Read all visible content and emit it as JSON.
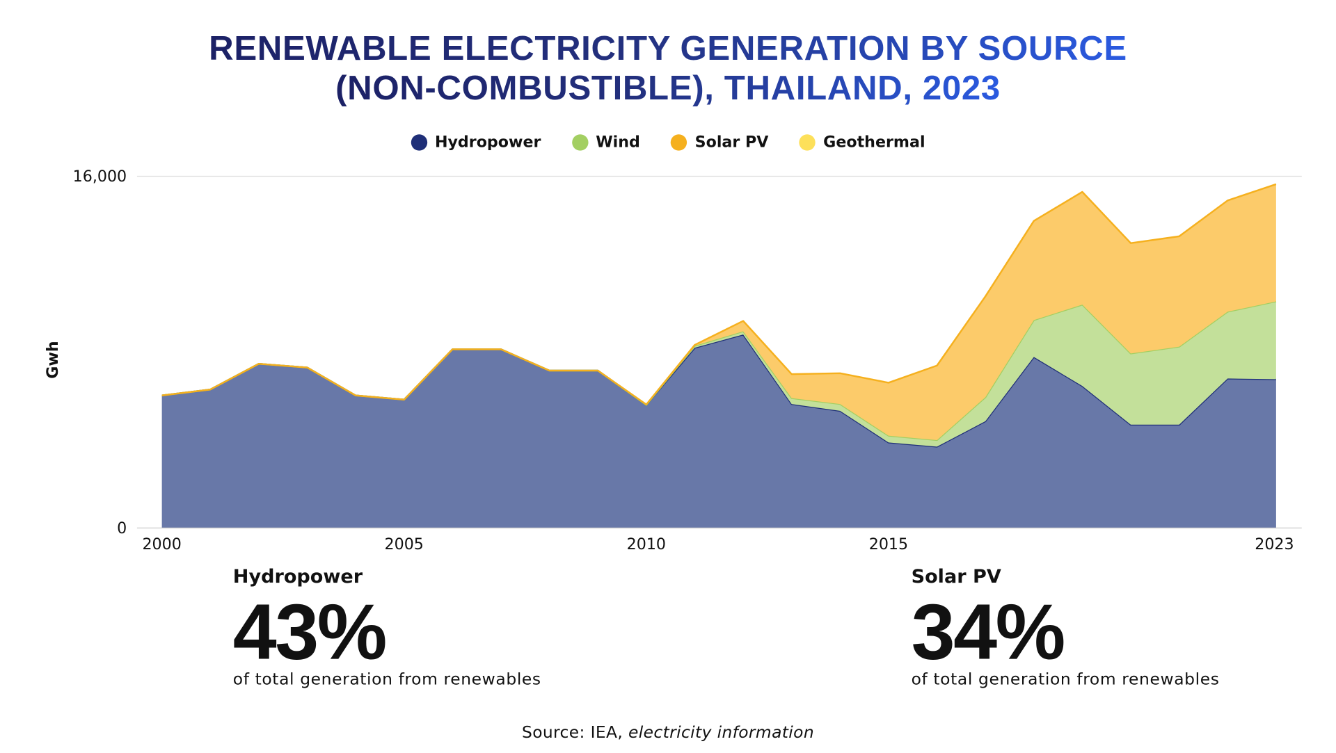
{
  "title_line1": "RENEWABLE ELECTRICITY GENERATION BY SOURCE",
  "title_line2": "(NON-COMBUSTIBLE), THAILAND, 2023",
  "chart_data": {
    "type": "area",
    "stacked": true,
    "title": "RENEWABLE ELECTRICITY GENERATION BY SOURCE (NON-COMBUSTIBLE), THAILAND, 2023",
    "ylabel": "Gwh",
    "ylim": [
      0,
      16000
    ],
    "y_ticks": [
      "0",
      "16,000"
    ],
    "x_ticks": [
      "2000",
      "2005",
      "2010",
      "2015",
      "2023"
    ],
    "grid": true,
    "legend_position": "top",
    "x": [
      2000,
      2001,
      2002,
      2003,
      2004,
      2005,
      2006,
      2007,
      2008,
      2009,
      2010,
      2011,
      2012,
      2013,
      2014,
      2015,
      2016,
      2017,
      2018,
      2019,
      2020,
      2021,
      2022,
      2023
    ],
    "series": [
      {
        "name": "Hydropower",
        "color": "#1f2f78",
        "fill": "#6878a8",
        "values": [
          6030,
          6300,
          7470,
          7300,
          6030,
          5840,
          8130,
          8130,
          7160,
          7160,
          5600,
          8200,
          8800,
          5640,
          5330,
          3890,
          3700,
          4860,
          7780,
          6460,
          4700,
          4700,
          6800,
          6770
        ]
      },
      {
        "name": "Wind",
        "color": "#a3cf62",
        "fill": "#c3e09a",
        "values": [
          0,
          0,
          0,
          0,
          0,
          0,
          0,
          0,
          0,
          0,
          0,
          90,
          150,
          270,
          310,
          310,
          300,
          1090,
          1680,
          3700,
          3240,
          3550,
          3040,
          3540
        ]
      },
      {
        "name": "Solar PV",
        "color": "#f5b01e",
        "fill": "#fccb6a",
        "values": [
          0,
          0,
          0,
          0,
          0,
          0,
          0,
          0,
          0,
          0,
          20,
          40,
          470,
          1090,
          1400,
          2410,
          3390,
          4590,
          4510,
          5130,
          5020,
          5020,
          5060,
          5330
        ]
      },
      {
        "name": "Geothermal",
        "color": "#fde05a",
        "fill": "#fde05a",
        "values": [
          0,
          0,
          0,
          0,
          0,
          0,
          0,
          0,
          0,
          0,
          0,
          0,
          0,
          0,
          0,
          0,
          0,
          0,
          0,
          0,
          0,
          0,
          0,
          0
        ]
      }
    ]
  },
  "stats": [
    {
      "label": "Hydropower",
      "value": "43%",
      "caption": "of total generation from renewables"
    },
    {
      "label": "Solar PV",
      "value": "34%",
      "caption": "of total generation from renewables"
    }
  ],
  "source_prefix": "Source: IEA, ",
  "source_italic": "electricity information"
}
